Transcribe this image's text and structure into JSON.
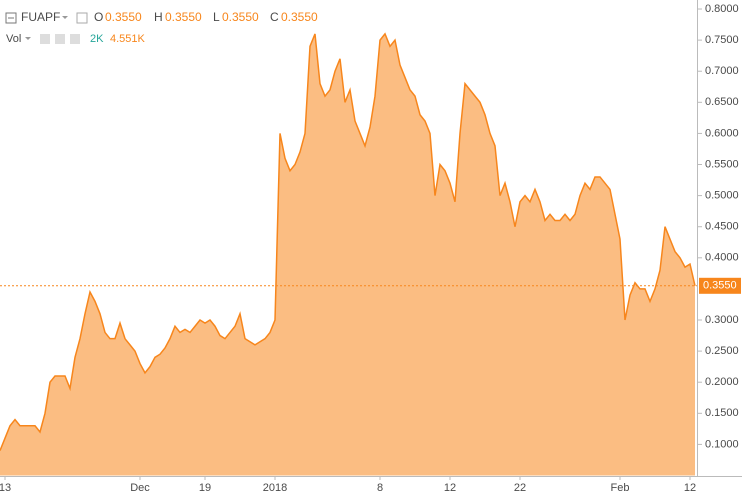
{
  "header": {
    "symbol": "FUAPF",
    "o": "O",
    "open": "0.3550",
    "h": "H",
    "high": "0.3550",
    "l": "L",
    "low": "0.3550",
    "c": "C",
    "close": "0.3550",
    "vol": "Vol",
    "vol_a": "2K",
    "vol_b": "4.551K"
  },
  "chart_data": {
    "type": "area",
    "color": "#f7861c",
    "categories": [
      null,
      "13",
      null,
      null,
      null,
      null,
      null,
      null,
      null,
      null,
      null,
      null,
      null,
      null,
      null,
      null,
      null,
      null,
      null,
      null,
      null,
      null,
      null,
      null,
      null,
      null,
      null,
      null,
      "Dec",
      null,
      null,
      null,
      null,
      null,
      null,
      null,
      null,
      null,
      null,
      null,
      null,
      "19",
      null,
      null,
      null,
      null,
      null,
      null,
      null,
      null,
      null,
      null,
      null,
      null,
      null,
      "2018",
      null,
      null,
      null,
      null,
      null,
      null,
      null,
      null,
      null,
      null,
      null,
      null,
      null,
      null,
      null,
      null,
      null,
      null,
      null,
      null,
      "8",
      null,
      null,
      null,
      null,
      null,
      null,
      null,
      null,
      null,
      null,
      null,
      null,
      null,
      "12",
      null,
      null,
      null,
      null,
      null,
      null,
      null,
      null,
      null,
      null,
      null,
      null,
      null,
      "22",
      null,
      null,
      null,
      null,
      null,
      null,
      null,
      null,
      null,
      null,
      null,
      null,
      null,
      null,
      null,
      null,
      null,
      null,
      null,
      "Feb",
      null,
      null,
      null,
      null,
      null,
      null,
      null,
      null,
      null,
      null,
      null,
      null,
      null,
      "12",
      null
    ],
    "values": [
      0.09,
      0.11,
      0.13,
      0.14,
      0.13,
      0.13,
      0.13,
      0.13,
      0.12,
      0.15,
      0.2,
      0.21,
      0.21,
      0.21,
      0.19,
      0.24,
      0.27,
      0.31,
      0.345,
      0.33,
      0.31,
      0.28,
      0.27,
      0.27,
      0.295,
      0.27,
      0.26,
      0.25,
      0.23,
      0.215,
      0.225,
      0.24,
      0.245,
      0.255,
      0.27,
      0.29,
      0.28,
      0.285,
      0.28,
      0.29,
      0.3,
      0.295,
      0.3,
      0.29,
      0.275,
      0.27,
      0.28,
      0.29,
      0.31,
      0.27,
      0.265,
      0.26,
      0.265,
      0.27,
      0.28,
      0.3,
      0.6,
      0.56,
      0.54,
      0.55,
      0.57,
      0.6,
      0.74,
      0.76,
      0.68,
      0.66,
      0.67,
      0.7,
      0.72,
      0.65,
      0.67,
      0.62,
      0.6,
      0.58,
      0.61,
      0.66,
      0.75,
      0.76,
      0.74,
      0.75,
      0.71,
      0.69,
      0.67,
      0.66,
      0.63,
      0.62,
      0.6,
      0.5,
      0.55,
      0.54,
      0.52,
      0.49,
      0.6,
      0.68,
      0.67,
      0.66,
      0.65,
      0.63,
      0.6,
      0.58,
      0.5,
      0.52,
      0.49,
      0.45,
      0.49,
      0.5,
      0.49,
      0.51,
      0.49,
      0.46,
      0.47,
      0.46,
      0.46,
      0.47,
      0.46,
      0.47,
      0.5,
      0.52,
      0.51,
      0.53,
      0.53,
      0.52,
      0.51,
      0.47,
      0.43,
      0.3,
      0.34,
      0.36,
      0.35,
      0.35,
      0.33,
      0.35,
      0.38,
      0.45,
      0.43,
      0.41,
      0.4,
      0.385,
      0.39,
      0.355
    ],
    "last_label": "0.3550",
    "ylim": [
      0.05,
      0.81
    ],
    "yticks": [
      {
        "value": 0.1,
        "label": "0.1000"
      },
      {
        "value": 0.15,
        "label": "0.1500"
      },
      {
        "value": 0.2,
        "label": "0.2000"
      },
      {
        "value": 0.25,
        "label": "0.2500"
      },
      {
        "value": 0.3,
        "label": "0.3000"
      },
      {
        "value": 0.4,
        "label": "0.4000"
      },
      {
        "value": 0.45,
        "label": "0.4500"
      },
      {
        "value": 0.5,
        "label": "0.5000"
      },
      {
        "value": 0.55,
        "label": "0.5500"
      },
      {
        "value": 0.6,
        "label": "0.6000"
      },
      {
        "value": 0.65,
        "label": "0.6500"
      },
      {
        "value": 0.7,
        "label": "0.7000"
      },
      {
        "value": 0.75,
        "label": "0.7500"
      },
      {
        "value": 0.8,
        "label": "0.8000"
      }
    ]
  }
}
